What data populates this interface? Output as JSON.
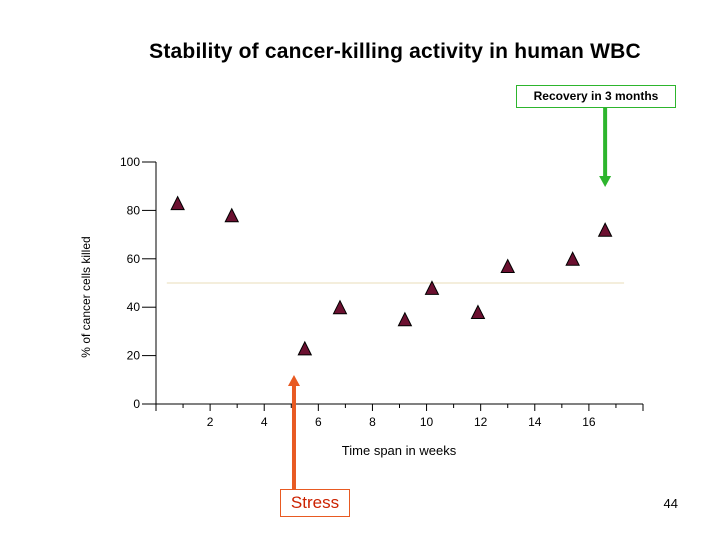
{
  "slide": {
    "title": "Stability of cancer-killing activity in human WBC",
    "page_number": "44"
  },
  "annotations": {
    "recovery": {
      "label": "Recovery in 3 months",
      "at_week": 16.6,
      "color": "#2db52d"
    },
    "stress": {
      "label": "Stress",
      "at_week": 5.1,
      "color": "#e85a22"
    }
  },
  "chart_data": {
    "type": "scatter",
    "title": "Stability of cancer-killing activity in human WBC",
    "xlabel": "Time span in weeks",
    "ylabel": "% of cancer cells killed",
    "xlim": [
      0,
      18
    ],
    "ylim": [
      0,
      100
    ],
    "x_ticks": [
      2,
      4,
      6,
      8,
      10,
      12,
      14,
      16
    ],
    "y_ticks": [
      0,
      20,
      40,
      60,
      80,
      100
    ],
    "reference_line": {
      "y": 50,
      "x_range": [
        0.4,
        17.3
      ],
      "color": "#e8dcb8"
    },
    "marker": {
      "shape": "triangle",
      "fill": "#6b1030",
      "stroke": "#000000"
    },
    "series": [
      {
        "name": "cancer-killing activity",
        "points": [
          {
            "x": 0.8,
            "y": 83
          },
          {
            "x": 2.8,
            "y": 78
          },
          {
            "x": 5.5,
            "y": 23
          },
          {
            "x": 6.8,
            "y": 40
          },
          {
            "x": 9.2,
            "y": 35
          },
          {
            "x": 10.2,
            "y": 48
          },
          {
            "x": 11.9,
            "y": 38
          },
          {
            "x": 13.0,
            "y": 57
          },
          {
            "x": 15.4,
            "y": 60
          },
          {
            "x": 16.6,
            "y": 72
          }
        ]
      }
    ]
  }
}
